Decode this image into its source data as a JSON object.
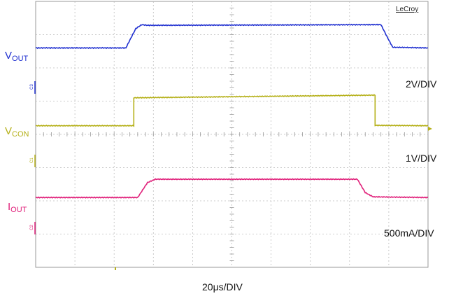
{
  "brand": "LeCroy",
  "timebase": "20μs/DIV",
  "colors": {
    "vout": "#1f2fd0",
    "vcon": "#b5b019",
    "iout": "#e0207a",
    "grid": "#bdbdbd"
  },
  "channels": [
    {
      "id": "vout",
      "label_main": "V",
      "label_sub": "OUT",
      "marker": "C3",
      "scale": "2V/DIV"
    },
    {
      "id": "vcon",
      "label_main": "V",
      "label_sub": "CON",
      "marker": "C1",
      "scale": "1V/DIV"
    },
    {
      "id": "iout",
      "label_main": "I",
      "label_sub": "OUT",
      "marker": "C2",
      "scale": "500mA/DIV"
    }
  ],
  "chart_data": {
    "type": "line",
    "title": "",
    "xlabel": "20μs/DIV",
    "ylabel": "",
    "grid": true,
    "x_unit": "divisions",
    "xlim": [
      0,
      10
    ],
    "ylim": [
      0,
      8
    ],
    "series": [
      {
        "name": "VOUT",
        "scale": "2V/DIV",
        "points": [
          [
            0,
            6.6
          ],
          [
            2.3,
            6.6
          ],
          [
            2.55,
            7.18
          ],
          [
            2.7,
            7.3
          ],
          [
            2.85,
            7.28
          ],
          [
            8.8,
            7.3
          ],
          [
            8.95,
            6.95
          ],
          [
            9.1,
            6.62
          ],
          [
            10,
            6.6
          ]
        ]
      },
      {
        "name": "VCON",
        "scale": "1V/DIV",
        "points": [
          [
            0,
            4.26
          ],
          [
            2.5,
            4.26
          ],
          [
            2.5,
            5.1
          ],
          [
            8.65,
            5.18
          ],
          [
            8.65,
            4.27
          ],
          [
            10,
            4.26
          ]
        ]
      },
      {
        "name": "IOUT",
        "scale": "500mA/DIV",
        "points": [
          [
            0,
            2.1
          ],
          [
            2.6,
            2.1
          ],
          [
            2.85,
            2.55
          ],
          [
            3.05,
            2.65
          ],
          [
            8.2,
            2.65
          ],
          [
            8.4,
            2.25
          ],
          [
            8.6,
            2.12
          ],
          [
            10,
            2.1
          ]
        ]
      }
    ]
  }
}
